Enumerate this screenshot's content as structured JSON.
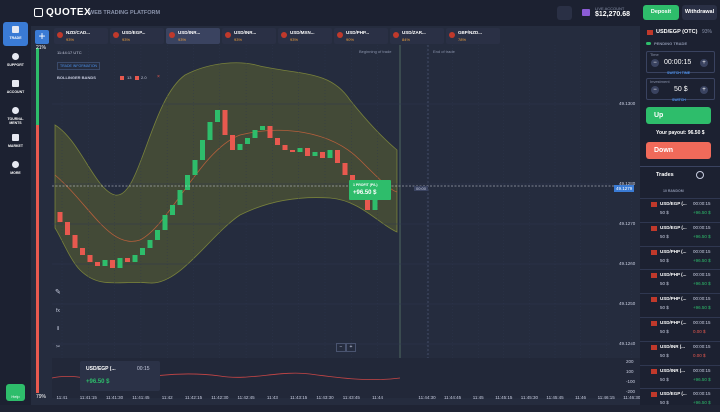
{
  "sidebar": {
    "logo": "QUOTEX",
    "subtitle": "WEB TRADING PLATFORM",
    "items": [
      "TRADE",
      "SUPPORT",
      "ACCOUNT",
      "TOURNA-\nMENTS",
      "MARKET",
      "MORE"
    ],
    "help": "Help"
  },
  "tabs": [
    {
      "name": "NZD/CAD...",
      "payout": "93%"
    },
    {
      "name": "USD/EGP...",
      "payout": "93%"
    },
    {
      "name": "USD/INR...",
      "payout": "93%"
    },
    {
      "name": "USD/INR...",
      "payout": "93%"
    },
    {
      "name": "USD/MXN...",
      "payout": "93%"
    },
    {
      "name": "USD/PHP...",
      "payout": "90%"
    },
    {
      "name": "USD/ZAR...",
      "payout": "84%"
    },
    {
      "name": "GBP/NZD...",
      "payout": "78%"
    }
  ],
  "account": {
    "label": "LIVE ACCOUNT",
    "balance": "$12,270.68",
    "deposit": "Deposit",
    "withdrawal": "Withdrawal"
  },
  "chart": {
    "time": "11:44:17 UTC",
    "trade_info": "TRADE INFORMATION",
    "indicator": "BOLLINGER BANDS",
    "period": "13",
    "deviation": "2.0",
    "begin": "Beginning of trade",
    "end": "End of trade",
    "trade_box": {
      "title": "1 PROFIT (P/L)",
      "value": "+96.50 $"
    },
    "current_price": "49.1279",
    "timer": "00:00",
    "sentiment_up": "21%",
    "sentiment_down": "79%",
    "ylim": [
      49.123475,
      49.1311
    ],
    "yticks": [
      {
        "value": 49.124,
        "label": "49.1240"
      },
      {
        "value": 49.125,
        "label": "49.1250"
      },
      {
        "value": 49.126,
        "label": "49.1260"
      },
      {
        "value": 49.127,
        "label": "49.1270"
      },
      {
        "value": 49.128,
        "label": "49.1280"
      },
      {
        "value": 49.13,
        "label": "49.1300"
      }
    ],
    "candles": {
      "open": [
        49.1273,
        49.12705,
        49.126725,
        49.1264,
        49.126225,
        49.12605,
        49.12595,
        49.1261,
        49.1259,
        49.12615,
        49.12605,
        49.126225,
        49.1264,
        49.1266,
        49.12685,
        49.127225,
        49.127475,
        49.12785,
        49.128225,
        49.1286,
        49.1291,
        49.12955,
        49.12985,
        49.129225,
        49.12885,
        49.129,
        49.12915,
        49.12935,
        49.12945,
        49.12915,
        49.128975,
        49.12885,
        49.1288,
        49.1289,
        49.1287,
        49.1288,
        49.12865,
        49.12885,
        49.128525,
        49.128225,
        49.12785,
        49.1276,
        49.12735,
        49.12765
      ],
      "close": [
        49.12705,
        49.126725,
        49.1264,
        49.126225,
        49.12605,
        49.12595,
        49.1261,
        49.1259,
        49.12615,
        49.12605,
        49.126225,
        49.1264,
        49.1266,
        49.12685,
        49.127225,
        49.127475,
        49.12785,
        49.128225,
        49.1286,
        49.1291,
        49.12955,
        49.12985,
        49.129225,
        49.12885,
        49.129,
        49.12915,
        49.12935,
        49.12945,
        49.12915,
        49.128975,
        49.12885,
        49.1288,
        49.1289,
        49.1287,
        49.1288,
        49.12865,
        49.12885,
        49.128525,
        49.128225,
        49.12785,
        49.1276,
        49.12735,
        49.12765,
        49.12795
      ],
      "up_color": "#2ebd6b",
      "down_color": "#e8594f"
    },
    "times_left": [
      "11:41",
      "11:41:15",
      "11:41:30",
      "11:41:45",
      "11:42",
      "11:42:15",
      "11:42:30",
      "11:42:45",
      "11:43",
      "11:43:15",
      "11:43:30",
      "11:43:45",
      "11:44"
    ],
    "times_right": [
      "11:44:30",
      "11:44:45",
      "11:45",
      "11:45:15",
      "11:45:30",
      "11:45:45",
      "11:46",
      "11:46:15",
      "11:46:30"
    ],
    "osc_ticks": [
      200,
      100,
      -100,
      -200
    ],
    "widget": {
      "asset": "USD/EGP (...",
      "time": "00:15",
      "profit": "+96.50 $"
    }
  },
  "panel": {
    "asset": "USD/EGP (OTC)",
    "payout": "93%",
    "pending": "PENDING TRADE",
    "time_label": "Time",
    "time": "00:00:15",
    "switch_time": "SWITCH TIME",
    "investment_label": "Investment",
    "investment": "50 $",
    "switch": "SWITCH",
    "up": "Up",
    "payout_text": "Your payout: 96.50 $",
    "down": "Down",
    "trades_title": "Trades",
    "trades_filter": "10 RANDOM",
    "trades": [
      {
        "asset": "USD/EGP (...",
        "time": "00:00:15",
        "amount": "50 $",
        "profit": "+96.50 $",
        "color": "#2ebd6b"
      },
      {
        "asset": "USD/EGP (...",
        "time": "00:00:15",
        "amount": "50 $",
        "profit": "+96.50 $",
        "color": "#2ebd6b"
      },
      {
        "asset": "USD/PHP (...",
        "time": "00:00:15",
        "amount": "50 $",
        "profit": "+96.50 $",
        "color": "#2ebd6b"
      },
      {
        "asset": "USD/PHP (...",
        "time": "00:00:15",
        "amount": "50 $",
        "profit": "+96.50 $",
        "color": "#2ebd6b"
      },
      {
        "asset": "USD/PHP (...",
        "time": "00:00:15",
        "amount": "50 $",
        "profit": "+96.50 $",
        "color": "#2ebd6b"
      },
      {
        "asset": "USD/PHP (...",
        "time": "00:00:15",
        "amount": "50 $",
        "profit": "0.00 $",
        "color": "#e8594f"
      },
      {
        "asset": "USD/INR (...",
        "time": "00:00:15",
        "amount": "50 $",
        "profit": "0.00 $",
        "color": "#e8594f"
      },
      {
        "asset": "USD/INR (...",
        "time": "00:00:15",
        "amount": "50 $",
        "profit": "+96.50 $",
        "color": "#2ebd6b"
      },
      {
        "asset": "USD/EGP (...",
        "time": "00:00:15",
        "amount": "50 $",
        "profit": "+96.50 $",
        "color": "#2ebd6b"
      }
    ]
  }
}
